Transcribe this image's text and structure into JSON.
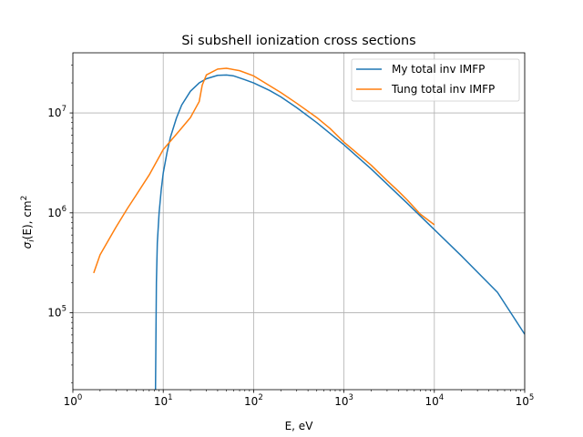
{
  "chart_data": {
    "type": "line",
    "title": "Si subshell ionization cross sections",
    "xlabel": "E, eV",
    "ylabel": {
      "sigma": "σ",
      "sub": "i",
      "mid": "(E), cm",
      "sup": "2"
    },
    "x_scale": "log",
    "y_scale": "log",
    "xlim": [
      1,
      100000
    ],
    "ylim": [
      17000,
      40000000
    ],
    "grid": true,
    "legend_position": "upper-right",
    "x_ticks": [
      {
        "value": 1,
        "base": "10",
        "exp": "0"
      },
      {
        "value": 10,
        "base": "10",
        "exp": "1"
      },
      {
        "value": 100,
        "base": "10",
        "exp": "2"
      },
      {
        "value": 1000,
        "base": "10",
        "exp": "3"
      },
      {
        "value": 10000,
        "base": "10",
        "exp": "4"
      },
      {
        "value": 100000,
        "base": "10",
        "exp": "5"
      }
    ],
    "y_ticks": [
      {
        "value": 100000,
        "base": "10",
        "exp": "5"
      },
      {
        "value": 1000000,
        "base": "10",
        "exp": "6"
      },
      {
        "value": 10000000,
        "base": "10",
        "exp": "7"
      }
    ],
    "series": [
      {
        "name": "My total inv IMFP",
        "color": "#1f77b4",
        "points": [
          [
            8.2,
            15000
          ],
          [
            8.4,
            200000
          ],
          [
            8.6,
            500000
          ],
          [
            9,
            1000000
          ],
          [
            9.5,
            1700000
          ],
          [
            10,
            2500000
          ],
          [
            11,
            4000000
          ],
          [
            12,
            5700000
          ],
          [
            14,
            8900000
          ],
          [
            16,
            12000000
          ],
          [
            20,
            16500000
          ],
          [
            25,
            20000000
          ],
          [
            30,
            22000000
          ],
          [
            40,
            23800000
          ],
          [
            50,
            24000000
          ],
          [
            60,
            23500000
          ],
          [
            80,
            21500000
          ],
          [
            100,
            20000000
          ],
          [
            150,
            16800000
          ],
          [
            200,
            14500000
          ],
          [
            300,
            11300000
          ],
          [
            500,
            8000000
          ],
          [
            1000,
            4800000
          ],
          [
            2000,
            2750000
          ],
          [
            5000,
            1250000
          ],
          [
            10000,
            680000
          ],
          [
            20000,
            370000
          ],
          [
            50000,
            160000
          ],
          [
            100000,
            61000
          ]
        ]
      },
      {
        "name": "Tung total inv IMFP",
        "color": "#ff7f0e",
        "points": [
          [
            1.7,
            250000
          ],
          [
            2,
            380000
          ],
          [
            3,
            720000
          ],
          [
            4,
            1100000
          ],
          [
            5,
            1500000
          ],
          [
            7,
            2400000
          ],
          [
            10,
            4300000
          ],
          [
            15,
            6600000
          ],
          [
            20,
            9000000
          ],
          [
            25,
            13000000
          ],
          [
            27,
            19000000
          ],
          [
            30,
            24000000
          ],
          [
            40,
            27500000
          ],
          [
            50,
            28000000
          ],
          [
            70,
            26500000
          ],
          [
            100,
            23500000
          ],
          [
            200,
            16000000
          ],
          [
            300,
            12500000
          ],
          [
            500,
            9000000
          ],
          [
            700,
            7000000
          ],
          [
            1000,
            5100000
          ],
          [
            2000,
            3000000
          ],
          [
            3000,
            2100000
          ],
          [
            4000,
            1650000
          ],
          [
            5000,
            1350000
          ],
          [
            7000,
            970000
          ],
          [
            10000,
            760000
          ]
        ]
      }
    ]
  }
}
